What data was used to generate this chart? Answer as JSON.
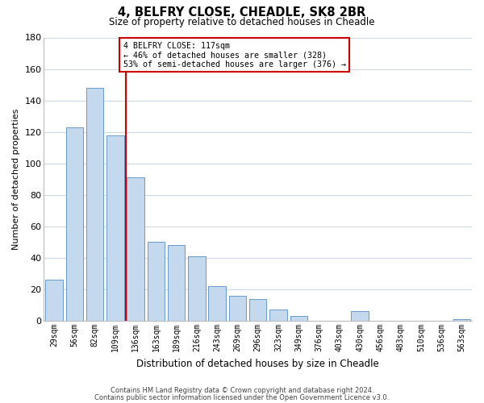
{
  "title": "4, BELFRY CLOSE, CHEADLE, SK8 2BR",
  "subtitle": "Size of property relative to detached houses in Cheadle",
  "xlabel": "Distribution of detached houses by size in Cheadle",
  "ylabel": "Number of detached properties",
  "bar_labels": [
    "29sqm",
    "56sqm",
    "82sqm",
    "109sqm",
    "136sqm",
    "163sqm",
    "189sqm",
    "216sqm",
    "243sqm",
    "269sqm",
    "296sqm",
    "323sqm",
    "349sqm",
    "376sqm",
    "403sqm",
    "430sqm",
    "456sqm",
    "483sqm",
    "510sqm",
    "536sqm",
    "563sqm"
  ],
  "bar_values": [
    26,
    123,
    148,
    118,
    91,
    50,
    48,
    41,
    22,
    16,
    14,
    7,
    3,
    0,
    0,
    6,
    0,
    0,
    0,
    0,
    1
  ],
  "bar_color": "#c5d9ee",
  "bar_edge_color": "#6899c8",
  "ylim": [
    0,
    180
  ],
  "yticks": [
    0,
    20,
    40,
    60,
    80,
    100,
    120,
    140,
    160,
    180
  ],
  "vline_x": 3.5,
  "vline_color": "#cc0000",
  "annotation_title": "4 BELFRY CLOSE: 117sqm",
  "annotation_line1": "← 46% of detached houses are smaller (328)",
  "annotation_line2": "53% of semi-detached houses are larger (376) →",
  "annotation_box_color": "#ffffff",
  "annotation_box_edge": "#cc0000",
  "footer_line1": "Contains HM Land Registry data © Crown copyright and database right 2024.",
  "footer_line2": "Contains public sector information licensed under the Open Government Licence v3.0.",
  "bg_color": "#ffffff",
  "grid_color": "#ccd9e8"
}
